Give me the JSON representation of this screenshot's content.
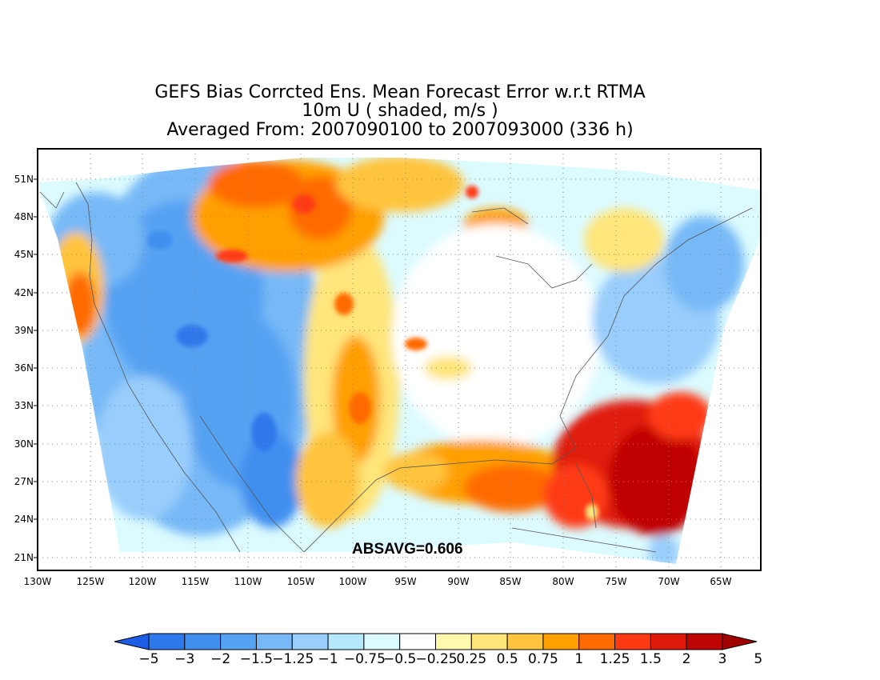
{
  "title": {
    "line1": "GEFS Bias Corrcted Ens. Mean Forecast Error w.r.t RTMA",
    "line2": "10m U ( shaded, m/s )",
    "line3": "Averaged From: 2007090100 to 2007093000 (336 h)"
  },
  "annotation": "ABSAVG=0.606",
  "lat_ticks": [
    "51N",
    "48N",
    "45N",
    "42N",
    "39N",
    "36N",
    "33N",
    "30N",
    "27N",
    "24N",
    "21N"
  ],
  "lon_ticks": [
    "130W",
    "125W",
    "120W",
    "115W",
    "110W",
    "105W",
    "100W",
    "95W",
    "90W",
    "85W",
    "80W",
    "75W",
    "70W",
    "65W"
  ],
  "colorbar": {
    "labels": [
      "-5",
      "-3",
      "-2",
      "-1.5",
      "-1.25",
      "-1",
      "-0.75",
      "-0.5",
      "-0.25",
      "0.25",
      "0.5",
      "0.75",
      "1",
      "1.25",
      "1.5",
      "2",
      "3",
      "5"
    ],
    "colors": [
      "#1e5ee6",
      "#2d78ea",
      "#3f8fef",
      "#56a2f2",
      "#77b9f7",
      "#99cdfb",
      "#b4e9fb",
      "#dcfbff",
      "#ffffff",
      "#fff9ae",
      "#ffe57a",
      "#ffc43d",
      "#ffa000",
      "#ff6a00",
      "#ff3a13",
      "#e01a0a",
      "#bf0404",
      "#a00000"
    ]
  },
  "chart_data": {
    "type": "heatmap",
    "variable": "10m U",
    "units": "m/s",
    "lat_range": [
      20,
      52
    ],
    "lon_range": [
      -130,
      -62
    ],
    "absavg": 0.606
  }
}
